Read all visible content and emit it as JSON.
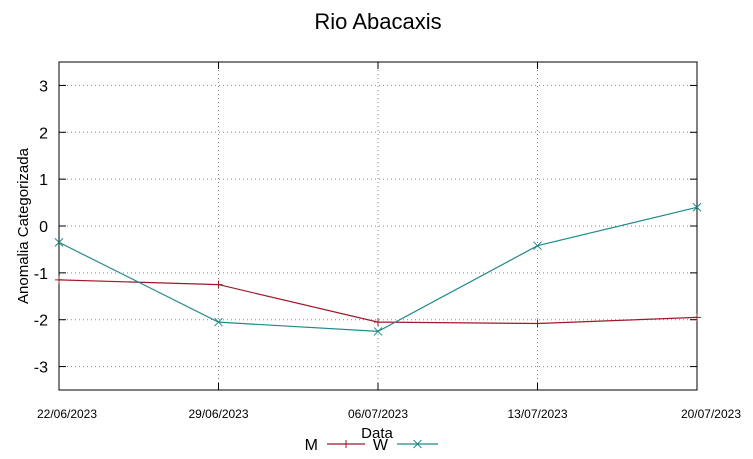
{
  "chart_data": {
    "type": "line",
    "title": "Rio Abacaxis",
    "xlabel": "Data",
    "ylabel": "Anomalia Categorizada",
    "categories": [
      "22/06/2023",
      "29/06/2023",
      "06/07/2023",
      "13/07/2023",
      "20/07/2023"
    ],
    "yticks": [
      "3",
      "2",
      "1",
      "0",
      "-1",
      "-2",
      "-3"
    ],
    "ylim": [
      -3.5,
      3.5
    ],
    "grid": true,
    "legend": "bottom-center",
    "series": [
      {
        "name": "M",
        "marker": "+",
        "color": "#a0182c",
        "values": [
          -1.15,
          -1.25,
          -2.05,
          -2.08,
          -1.95
        ]
      },
      {
        "name": "W",
        "marker": "x",
        "color": "#1f8a8a",
        "values": [
          -0.35,
          -2.05,
          -2.25,
          -0.42,
          0.4
        ]
      }
    ]
  }
}
